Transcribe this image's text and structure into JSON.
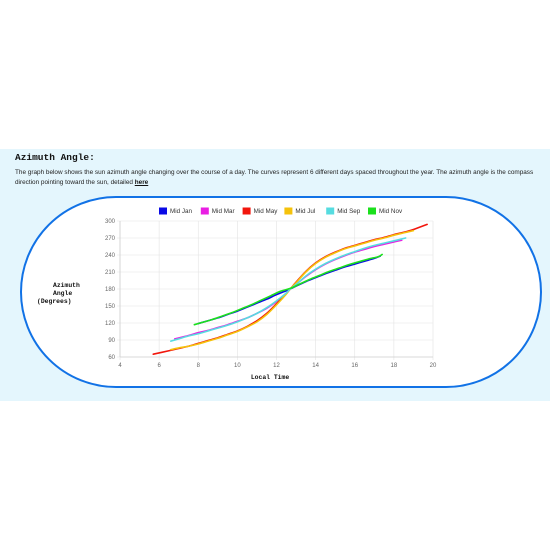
{
  "section": {
    "title": "Azimuth Angle:",
    "description": "The graph below shows the sun azimuth angle changing over the course of a day. The curves represent 6 different days spaced throughout the year. The azimuth angle is the compass direction pointing toward the sun, detailed",
    "link_text": "here"
  },
  "colors": {
    "panel_bg": "#e4f6fd",
    "frame_border": "#1172e6"
  },
  "chart_data": {
    "type": "line",
    "xlabel": "Local Time",
    "ylabel_lines": [
      "Azimuth",
      "Angle",
      "(Degrees)"
    ],
    "xlim": [
      4,
      20
    ],
    "ylim": [
      60,
      300
    ],
    "x_ticks": [
      4,
      6,
      8,
      10,
      12,
      14,
      16,
      18,
      20
    ],
    "y_ticks": [
      60,
      90,
      120,
      150,
      180,
      210,
      240,
      270,
      300
    ],
    "grid": true,
    "legend_position": "top",
    "series": [
      {
        "name": "Mid Jan",
        "color": "#0a0ae6",
        "x": [
          8.0,
          8.5,
          9.0,
          9.5,
          10.0,
          10.5,
          11.0,
          11.5,
          12.0,
          12.5,
          12.7,
          13.0,
          13.5,
          14.0,
          14.5,
          15.0,
          15.5,
          16.0,
          16.5,
          17.0,
          17.3
        ],
        "y": [
          119,
          124,
          129,
          135,
          141,
          148,
          155,
          162,
          170,
          177,
          180,
          185,
          193,
          200,
          207,
          213,
          219,
          224,
          229,
          234,
          238
        ]
      },
      {
        "name": "Mid Mar",
        "color": "#e91ee3",
        "x": [
          6.8,
          7.5,
          8.0,
          8.5,
          9.0,
          9.5,
          10.0,
          10.5,
          11.0,
          11.5,
          12.0,
          12.5,
          12.7,
          13.0,
          13.5,
          14.0,
          14.5,
          15.0,
          15.5,
          16.0,
          16.5,
          17.0,
          17.5,
          18.0,
          18.4
        ],
        "y": [
          92,
          98,
          103,
          107,
          112,
          117,
          123,
          129,
          137,
          146,
          158,
          172,
          180,
          188,
          202,
          214,
          224,
          232,
          239,
          245,
          250,
          255,
          259,
          263,
          266
        ]
      },
      {
        "name": "Mid May",
        "color": "#f2160c",
        "x": [
          5.7,
          6.5,
          7.0,
          7.5,
          8.0,
          8.5,
          9.0,
          9.5,
          10.0,
          10.5,
          11.0,
          11.5,
          12.0,
          12.5,
          12.7,
          13.0,
          13.5,
          14.0,
          14.5,
          15.0,
          15.5,
          16.0,
          16.5,
          17.0,
          17.5,
          18.0,
          18.5,
          19.0,
          19.7
        ],
        "y": [
          65,
          71,
          75,
          79,
          84,
          89,
          94,
          100,
          106,
          114,
          124,
          137,
          154,
          172,
          180,
          192,
          211,
          226,
          237,
          245,
          252,
          257,
          262,
          267,
          271,
          276,
          280,
          285,
          294
        ]
      },
      {
        "name": "Mid Jul",
        "color": "#f5c20b",
        "x": [
          6.6,
          7.0,
          7.5,
          8.0,
          8.5,
          9.0,
          9.5,
          10.0,
          10.5,
          11.0,
          11.5,
          12.0,
          12.5,
          12.7,
          13.0,
          13.5,
          14.0,
          14.5,
          15.0,
          15.5,
          16.0,
          16.5,
          17.0,
          17.5,
          18.0,
          18.5,
          19.0
        ],
        "y": [
          73,
          76,
          79,
          83,
          88,
          93,
          99,
          105,
          113,
          122,
          135,
          152,
          171,
          180,
          191,
          210,
          225,
          236,
          244,
          251,
          256,
          261,
          266,
          270,
          275,
          279,
          283
        ]
      },
      {
        "name": "Mid Sep",
        "color": "#56dce0",
        "x": [
          6.6,
          7.0,
          7.5,
          8.0,
          8.5,
          9.0,
          9.5,
          10.0,
          10.5,
          11.0,
          11.5,
          12.0,
          12.5,
          12.7,
          13.0,
          13.5,
          14.0,
          14.5,
          15.0,
          15.5,
          16.0,
          16.5,
          17.0,
          17.5,
          18.0,
          18.6
        ],
        "y": [
          88,
          92,
          97,
          101,
          106,
          111,
          116,
          122,
          129,
          137,
          147,
          159,
          173,
          180,
          188,
          203,
          215,
          225,
          233,
          240,
          246,
          252,
          257,
          261,
          265,
          270
        ]
      },
      {
        "name": "Mid Nov",
        "color": "#1be01d",
        "x": [
          7.8,
          8.2,
          8.7,
          9.2,
          9.7,
          10.2,
          10.7,
          11.2,
          11.7,
          12.2,
          12.7,
          13.2,
          13.7,
          14.2,
          14.7,
          15.2,
          15.7,
          16.2,
          16.7,
          17.2,
          17.4
        ],
        "y": [
          117,
          121,
          126,
          132,
          138,
          145,
          152,
          160,
          168,
          176,
          181,
          189,
          197,
          204,
          211,
          217,
          223,
          228,
          233,
          237,
          241
        ]
      }
    ]
  }
}
